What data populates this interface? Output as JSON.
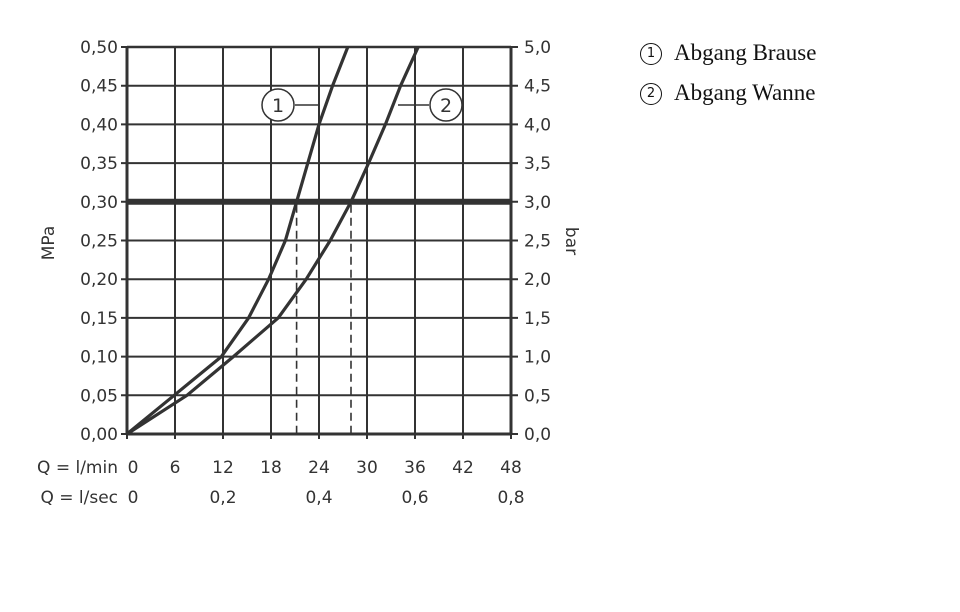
{
  "chart_data": {
    "type": "line",
    "xlabel_rows": [
      {
        "label": "Q = l/min",
        "ticks": [
          {
            "x": 0,
            "text": "0"
          },
          {
            "x": 6,
            "text": "6"
          },
          {
            "x": 12,
            "text": "12"
          },
          {
            "x": 18,
            "text": "18"
          },
          {
            "x": 24,
            "text": "24"
          },
          {
            "x": 30,
            "text": "30"
          },
          {
            "x": 36,
            "text": "36"
          },
          {
            "x": 42,
            "text": "42"
          },
          {
            "x": 48,
            "text": "48"
          }
        ]
      },
      {
        "label": "Q = l/sec",
        "ticks": [
          {
            "x": 0,
            "text": "0"
          },
          {
            "x": 12,
            "text": "0,2"
          },
          {
            "x": 24,
            "text": "0,4"
          },
          {
            "x": 36,
            "text": "0,6"
          },
          {
            "x": 48,
            "text": "0,8"
          }
        ]
      }
    ],
    "ylabel_left": "MPa",
    "ylabel_right": "bar",
    "xlim": [
      0,
      48
    ],
    "ylim": [
      0,
      0.5
    ],
    "yticks_left": [
      "0,00",
      "0,05",
      "0,10",
      "0,15",
      "0,20",
      "0,25",
      "0,30",
      "0,35",
      "0,40",
      "0,45",
      "0,50"
    ],
    "yticks_right": [
      "0,0",
      "0,5",
      "1,0",
      "1,5",
      "2,0",
      "2,5",
      "3,0",
      "3,5",
      "4,0",
      "4,5",
      "5,0"
    ],
    "grid": true,
    "reference_line": {
      "y": 0.3
    },
    "series": [
      {
        "name": "1",
        "color": "#333333",
        "x": [
          0,
          5.9,
          11.8,
          15.2,
          17.7,
          19.8,
          21.2,
          22.6,
          24.0,
          25.7,
          27.6
        ],
        "y": [
          0,
          0.05,
          0.1,
          0.15,
          0.2,
          0.25,
          0.3,
          0.35,
          0.4,
          0.45,
          0.5
        ],
        "marker_x_at_ref": 21.2
      },
      {
        "name": "2",
        "color": "#333333",
        "x": [
          0,
          7.5,
          13.3,
          18.9,
          22.4,
          25.4,
          28.0,
          30.2,
          32.3,
          34.2,
          36.4
        ],
        "y": [
          0,
          0.05,
          0.1,
          0.15,
          0.2,
          0.25,
          0.3,
          0.35,
          0.4,
          0.45,
          0.5
        ],
        "marker_x_at_ref": 28.0
      }
    ],
    "legend": {
      "placement": "top-right",
      "entries": [
        {
          "num": "1",
          "text": "Abgang Brause"
        },
        {
          "num": "2",
          "text": "Abgang Wanne"
        }
      ]
    }
  }
}
